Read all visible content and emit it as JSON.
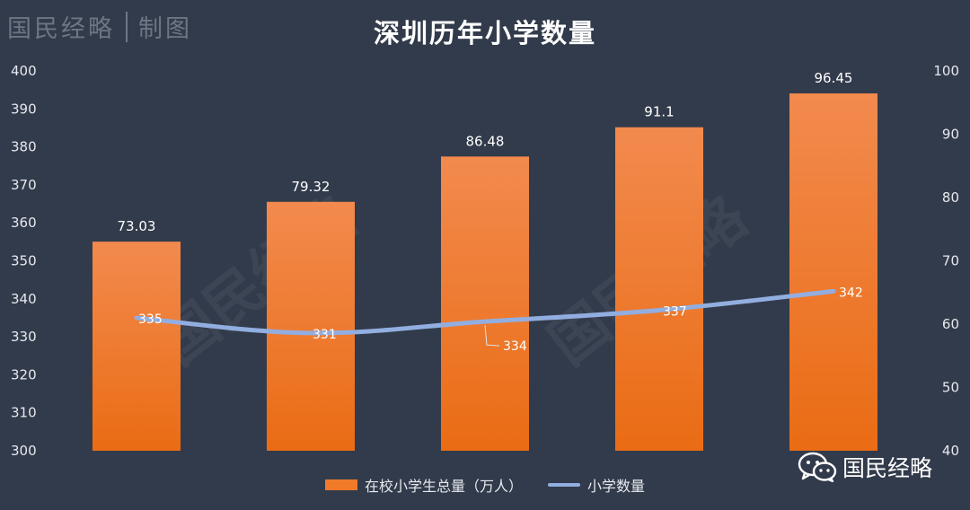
{
  "header": {
    "brand_name": "国民经略",
    "brand_suffix": "制图"
  },
  "watermark": "国民经略",
  "footer": {
    "brand": "国民经略",
    "icon": "wechat-icon"
  },
  "colors": {
    "background": "#323b4b",
    "bar": "#f07a2a",
    "line": "#92aee0"
  },
  "chart_data": {
    "type": "bar",
    "title": "深圳历年小学数量",
    "categories": [
      "",
      "",
      "",
      "",
      ""
    ],
    "series": [
      {
        "name": "在校小学生总量（万人）",
        "type": "bar",
        "axis": "right",
        "values": [
          73.03,
          79.32,
          86.48,
          91.1,
          96.45
        ],
        "value_labels": [
          "73.03",
          "79.32",
          "86.48",
          "91.1",
          "96.45"
        ]
      },
      {
        "name": "小学数量",
        "type": "line",
        "axis": "left",
        "values": [
          335,
          331,
          334,
          337,
          342
        ],
        "value_labels": [
          "335",
          "331",
          "334",
          "337",
          "342"
        ]
      }
    ],
    "y_left": {
      "min": 300,
      "max": 400,
      "step": 10,
      "ticks": [
        "300",
        "310",
        "320",
        "330",
        "340",
        "350",
        "360",
        "370",
        "380",
        "390",
        "400"
      ]
    },
    "y_right": {
      "min": 40,
      "max": 100,
      "step": 10,
      "ticks": [
        "40",
        "50",
        "60",
        "70",
        "80",
        "90",
        "100"
      ]
    },
    "grid": false,
    "legend": "bottom"
  }
}
